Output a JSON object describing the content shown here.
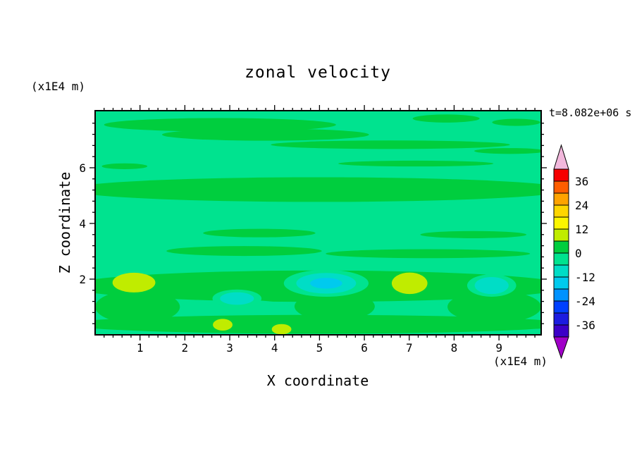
{
  "chart_data": {
    "type": "filled-contour",
    "title": "zonal velocity",
    "time_label": "t=8.082e+06 s",
    "xlabel": "X coordinate",
    "ylabel": "Z coordinate",
    "x_unit_label": "(x1E4 m)",
    "y_unit_label": "(x1E4 m)",
    "x_range": [
      0,
      9.94
    ],
    "y_range": [
      0,
      8.05
    ],
    "x_ticks": [
      1,
      2,
      3,
      4,
      5,
      6,
      7,
      8,
      9
    ],
    "y_ticks": [
      2,
      4,
      6
    ],
    "x_minor_step": 0.2,
    "y_minor_step": 0.4,
    "grid": false,
    "colorbar": {
      "position": "right",
      "boundary_labels": [
        36,
        24,
        12,
        0,
        -12,
        -24,
        -36
      ],
      "levels": [
        42,
        36,
        30,
        24,
        18,
        12,
        6,
        0,
        -6,
        -12,
        -18,
        -24,
        -30,
        -36,
        -42
      ],
      "cell_colors": [
        "#F60000",
        "#FF5E00",
        "#FFA300",
        "#FFD600",
        "#FCF600",
        "#C0EC00",
        "#00CE3E",
        "#00E38F",
        "#00DDC6",
        "#00CAEE",
        "#0092FF",
        "#0040FF",
        "#1C1CE0",
        "#3C00C8"
      ],
      "above_color": "#F2B8DC",
      "below_color": "#A000C8"
    },
    "field": {
      "description": "zonal velocity field, mostly between -6 and 12, horizontal streak structure, stronger variation near bottom",
      "background_color_index": 7,
      "blobs": [
        [
          0.28,
          0.063,
          0.26,
          0.03,
          6
        ],
        [
          0.382,
          0.107,
          0.232,
          0.027,
          6
        ],
        [
          0.787,
          0.035,
          0.075,
          0.018,
          6
        ],
        [
          0.944,
          0.052,
          0.054,
          0.016,
          6
        ],
        [
          0.662,
          0.152,
          0.268,
          0.019,
          6
        ],
        [
          0.93,
          0.18,
          0.08,
          0.013,
          6
        ],
        [
          0.066,
          0.248,
          0.051,
          0.013,
          6
        ],
        [
          0.719,
          0.236,
          0.174,
          0.013,
          6
        ],
        [
          0.5,
          0.352,
          0.56,
          0.055,
          6
        ],
        [
          0.368,
          0.546,
          0.126,
          0.019,
          6
        ],
        [
          0.848,
          0.553,
          0.119,
          0.016,
          6
        ],
        [
          0.334,
          0.626,
          0.174,
          0.022,
          6
        ],
        [
          0.746,
          0.638,
          0.229,
          0.02,
          6
        ],
        [
          0.5,
          0.783,
          0.56,
          0.07,
          6
        ],
        [
          0.5,
          0.953,
          0.56,
          0.042,
          6
        ],
        [
          0.095,
          0.875,
          0.095,
          0.075,
          6
        ],
        [
          0.537,
          0.873,
          0.09,
          0.065,
          6
        ],
        [
          0.895,
          0.875,
          0.105,
          0.072,
          6
        ],
        [
          0.316,
          0.874,
          0.12,
          0.03,
          7
        ],
        [
          0.71,
          0.88,
          0.08,
          0.026,
          7
        ],
        [
          0.518,
          0.77,
          0.095,
          0.06,
          7
        ],
        [
          0.889,
          0.78,
          0.055,
          0.05,
          7
        ],
        [
          0.318,
          0.838,
          0.055,
          0.04,
          7
        ],
        [
          0.518,
          0.77,
          0.067,
          0.046,
          8
        ],
        [
          0.889,
          0.78,
          0.038,
          0.038,
          8
        ],
        [
          0.318,
          0.838,
          0.038,
          0.028,
          8
        ],
        [
          0.518,
          0.77,
          0.036,
          0.024,
          9
        ],
        [
          0.087,
          0.767,
          0.048,
          0.044,
          5
        ],
        [
          0.705,
          0.77,
          0.04,
          0.048,
          5
        ],
        [
          0.286,
          0.955,
          0.022,
          0.026,
          5
        ],
        [
          0.418,
          0.975,
          0.022,
          0.023,
          5
        ]
      ]
    }
  }
}
